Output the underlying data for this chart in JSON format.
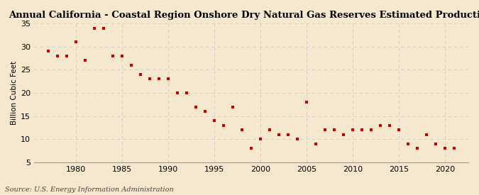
{
  "title": "Annual California - Coastal Region Onshore Dry Natural Gas Reserves Estimated Production",
  "ylabel": "Billion Cubic Feet",
  "source": "Source: U.S. Energy Information Administration",
  "background_color": "#f5e8ce",
  "dot_color": "#cc0000",
  "grid_color": "#c8c8c8",
  "years": [
    1977,
    1978,
    1979,
    1980,
    1981,
    1982,
    1983,
    1984,
    1985,
    1986,
    1987,
    1988,
    1989,
    1990,
    1991,
    1992,
    1993,
    1994,
    1995,
    1996,
    1997,
    1998,
    1999,
    2000,
    2001,
    2002,
    2003,
    2004,
    2005,
    2006,
    2007,
    2008,
    2009,
    2010,
    2011,
    2012,
    2013,
    2014,
    2015,
    2016,
    2017,
    2018,
    2019,
    2020,
    2021
  ],
  "values": [
    29,
    28,
    28,
    31,
    27,
    34,
    34,
    28,
    28,
    26,
    24,
    23,
    23,
    23,
    20,
    20,
    17,
    16,
    14,
    13,
    17,
    12,
    8,
    10,
    12,
    11,
    11,
    10,
    18,
    9,
    12,
    12,
    11,
    12,
    12,
    12,
    13,
    13,
    12,
    9,
    8,
    11,
    9,
    8,
    8
  ],
  "ylim": [
    5,
    35
  ],
  "yticks": [
    5,
    10,
    15,
    20,
    25,
    30,
    35
  ],
  "xlim": [
    1975.5,
    2022.5
  ],
  "xticks": [
    1980,
    1985,
    1990,
    1995,
    2000,
    2005,
    2010,
    2015,
    2020
  ],
  "title_fontsize": 9.5,
  "tick_fontsize": 8,
  "ylabel_fontsize": 7.5,
  "source_fontsize": 7
}
